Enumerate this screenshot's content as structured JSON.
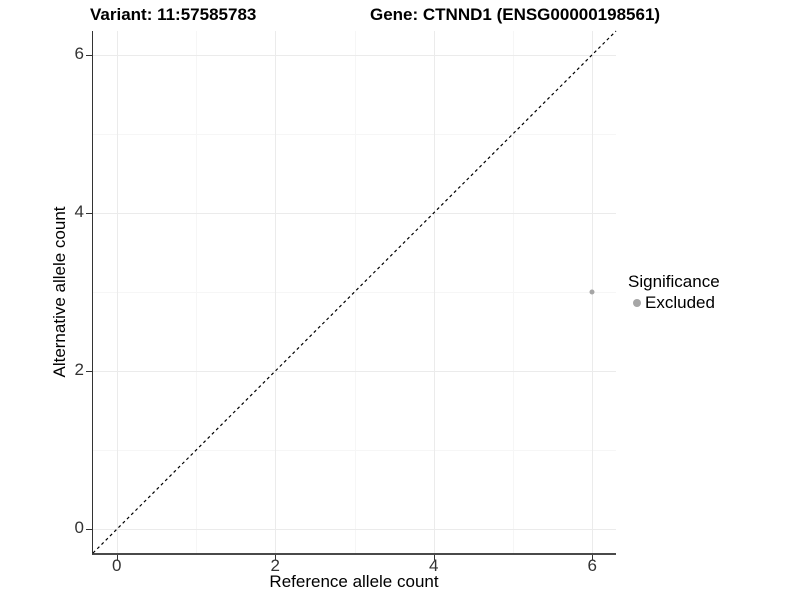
{
  "titles": {
    "variant": "Variant: 11:57585783",
    "gene": "Gene: CTNND1 (ENSG00000198561)"
  },
  "chart_data": {
    "type": "scatter",
    "title_variant": "Variant: 11:57585783",
    "title_gene": "Gene: CTNND1 (ENSG00000198561)",
    "xlabel": "Reference allele count",
    "ylabel": "Alternative allele count",
    "xlim": [
      -0.3,
      6.3
    ],
    "ylim": [
      -0.3,
      6.3
    ],
    "x_major_ticks": [
      0,
      2,
      4,
      6
    ],
    "y_major_ticks": [
      0,
      2,
      4,
      6
    ],
    "x_minor_gridlines": [
      1,
      3,
      5
    ],
    "y_minor_gridlines": [
      1,
      3,
      5
    ],
    "grid": true,
    "aspect": "equal",
    "identity_line": {
      "style": "dashed",
      "color": "#000000",
      "from": [
        -0.3,
        -0.3
      ],
      "to": [
        6.3,
        6.3
      ]
    },
    "series": [
      {
        "name": "Excluded",
        "color": "#a6a6a6",
        "points": [
          {
            "x": 6,
            "y": 3
          }
        ]
      }
    ],
    "legend": {
      "title": "Significance",
      "position": "right",
      "entries": [
        {
          "label": "Excluded",
          "color": "#a6a6a6"
        }
      ]
    }
  },
  "colors": {
    "grid_major": "#ebebeb",
    "grid_minor": "#f6f6f6",
    "axis_line": "#333333",
    "tick_text": "#333333",
    "title_text": "#000000"
  }
}
